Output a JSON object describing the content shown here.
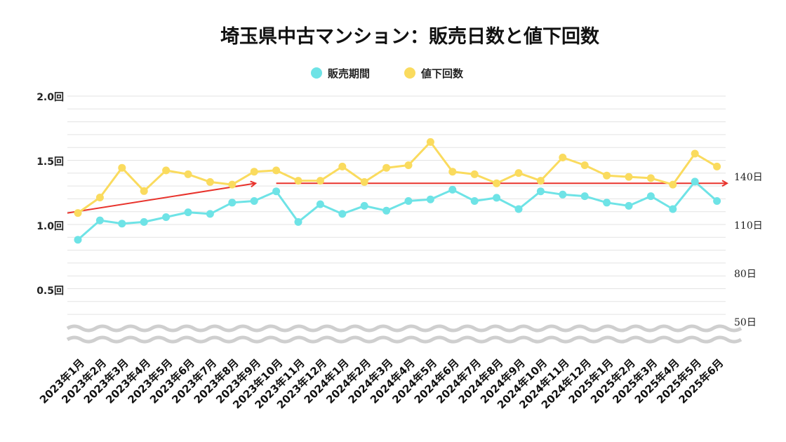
{
  "chart_data": {
    "type": "line",
    "title": "埼玉県中古マンション：販売日数と値下回数",
    "categories": [
      "2023年1月",
      "2023年2月",
      "2023年3月",
      "2023年4月",
      "2023年5月",
      "2023年6月",
      "2023年7月",
      "2023年8月",
      "2023年9月",
      "2023年10月",
      "2023年11月",
      "2023年12月",
      "2024年1月",
      "2024年2月",
      "2024年3月",
      "2024年4月",
      "2024年5月",
      "2024年6月",
      "2024年7月",
      "2024年8月",
      "2024年9月",
      "2024年10月",
      "2024年11月",
      "2024年12月",
      "2025年1月",
      "2025年2月",
      "2025年3月",
      "2025年4月",
      "2025年5月",
      "2025年6月"
    ],
    "series": [
      {
        "name": "販売期間",
        "color": "#6ee3e6",
        "axis": "right",
        "unit": "日",
        "values": [
          101,
          113,
          111,
          112,
          115,
          118,
          117,
          124,
          125,
          131,
          112,
          123,
          117,
          122,
          119,
          125,
          126,
          132,
          125,
          127,
          120,
          131,
          129,
          128,
          124,
          122,
          128,
          120,
          137,
          125
        ]
      },
      {
        "name": "値下回数",
        "color": "#fadb5e",
        "axis": "left",
        "unit": "回",
        "values": [
          1.1,
          1.22,
          1.45,
          1.27,
          1.43,
          1.4,
          1.34,
          1.32,
          1.42,
          1.43,
          1.35,
          1.35,
          1.46,
          1.34,
          1.45,
          1.47,
          1.65,
          1.42,
          1.4,
          1.33,
          1.41,
          1.35,
          1.53,
          1.47,
          1.39,
          1.38,
          1.37,
          1.32,
          1.56,
          1.46
        ]
      }
    ],
    "y_left": {
      "ticks": [
        "2.0回",
        "1.5回",
        "1.0回",
        "0.5回"
      ],
      "tick_values": [
        2.0,
        1.5,
        1.0,
        0.5
      ],
      "range": [
        0,
        2.0
      ]
    },
    "y_right": {
      "ticks": [
        "140日",
        "110日",
        "80日",
        "50日"
      ],
      "tick_values": [
        140,
        110,
        80,
        50
      ]
    },
    "legend": {
      "position": "top-center",
      "items": [
        "販売期間",
        "値下回数"
      ]
    },
    "trend_arrows": [
      {
        "from_category": "2023年1月",
        "from_value": 1.1,
        "to_category": "2023年9月",
        "to_value": 1.33,
        "color": "#e8332c"
      },
      {
        "from_category": "2023年10月",
        "from_value": 1.33,
        "to_category": "2025年6月",
        "to_value": 1.33,
        "color": "#e8332c"
      }
    ],
    "axis_break": true,
    "grid": true
  }
}
